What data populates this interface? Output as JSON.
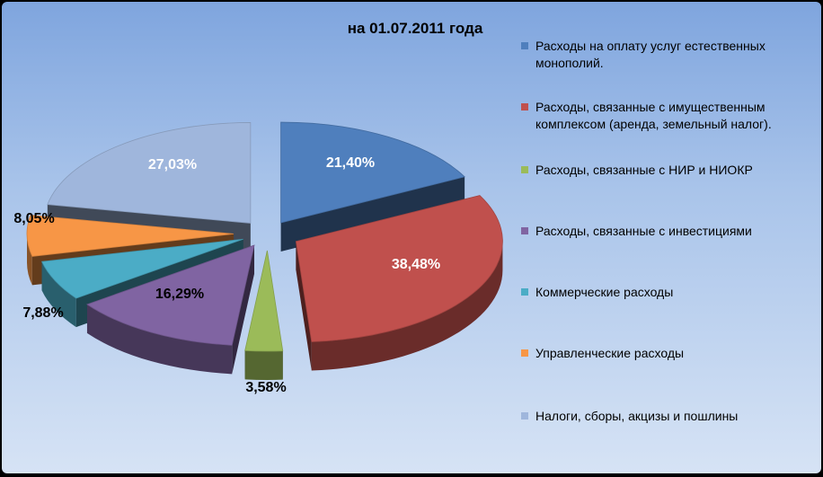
{
  "chart_data": {
    "type": "pie",
    "title": "на 01.07.2011 года",
    "legend_position": "right",
    "slices": [
      {
        "label": "Расходы на оплату услуг естественных монополий.",
        "value": 21.4,
        "value_label": "21,40%",
        "color": "#4f7fbd"
      },
      {
        "label": "Расходы, связанные с имущественным комплексом (аренда, земельный налог).",
        "value": 38.48,
        "value_label": "38,48%",
        "color": "#c0504d"
      },
      {
        "label": "Расходы, связанные с НИР и НИОКР",
        "value": 3.58,
        "value_label": "3,58%",
        "color": "#9bbb59"
      },
      {
        "label": "Расходы, связанные с инвестициями",
        "value": 16.29,
        "value_label": "16,29%",
        "color": "#8064a2"
      },
      {
        "label": "Коммерческие расходы",
        "value": 7.88,
        "value_label": "7,88%",
        "color": "#4bacc6"
      },
      {
        "label": "Управленческие расходы",
        "value": 8.05,
        "value_label": "8,05%",
        "color": "#f79646"
      },
      {
        "label": "Налоги, сборы, акцизы и пошлины",
        "value": 27.03,
        "value_label": "27,03%",
        "color": "#9fb6dc"
      }
    ]
  }
}
